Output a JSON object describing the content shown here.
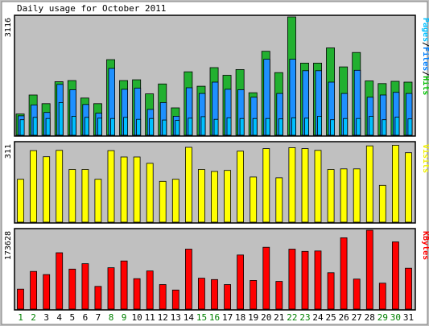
{
  "chart_data": {
    "type": "bar",
    "title": "Daily usage for October 2011",
    "categories": [
      "1",
      "2",
      "3",
      "4",
      "5",
      "6",
      "7",
      "8",
      "9",
      "10",
      "11",
      "12",
      "13",
      "14",
      "15",
      "16",
      "17",
      "18",
      "19",
      "20",
      "21",
      "22",
      "23",
      "24",
      "25",
      "26",
      "27",
      "28",
      "29",
      "30",
      "31"
    ],
    "weekend_days": [
      "1",
      "2",
      "8",
      "9",
      "15",
      "16",
      "22",
      "23",
      "29",
      "30"
    ],
    "panels": [
      {
        "name": "hits-files-pages",
        "scale_label": "3116",
        "ymax": 3116,
        "side_label_parts": [
          {
            "text": "Pages",
            "color": "#00c0ff"
          },
          {
            "text": "/",
            "color": "#000000"
          },
          {
            "text": "Files",
            "color": "#0080ff"
          },
          {
            "text": "/",
            "color": "#000000"
          },
          {
            "text": "Hits",
            "color": "#00c000"
          }
        ],
        "series": [
          {
            "name": "Hits",
            "color": "#22b030",
            "values": [
              560,
              1060,
              830,
              1410,
              1440,
              980,
              830,
              1990,
              1440,
              1460,
              1090,
              1350,
              720,
              1670,
              1290,
              1780,
              1580,
              1730,
              1120,
              2210,
              1650,
              3116,
              1900,
              1900,
              2300,
              1800,
              2180,
              1430,
              1360,
              1420,
              1400
            ]
          },
          {
            "name": "Files",
            "color": "#1e90ff",
            "values": [
              510,
              800,
              600,
              1340,
              1200,
              810,
              580,
              1760,
              1210,
              1240,
              680,
              860,
              500,
              1250,
              1100,
              1400,
              1210,
              1200,
              1000,
              2000,
              1100,
              2000,
              1700,
              1700,
              1400,
              1100,
              1710,
              1000,
              1060,
              1130,
              1100
            ]
          },
          {
            "name": "Pages",
            "color": "#00bfff",
            "values": [
              410,
              470,
              440,
              860,
              500,
              470,
              450,
              440,
              470,
              420,
              440,
              400,
              390,
              450,
              490,
              420,
              460,
              440,
              440,
              440,
              430,
              460,
              450,
              500,
              410,
              440,
              440,
              500,
              410,
              480,
              430
            ]
          }
        ]
      },
      {
        "name": "visits",
        "scale_label": "311",
        "ymax": 311,
        "side_label_parts": [
          {
            "text": "Visits",
            "color": "#f0f000"
          }
        ],
        "series": [
          {
            "name": "Visits",
            "color": "#ffff00",
            "values": [
              169,
              282,
              258,
              283,
              208,
              208,
              169,
              282,
              257,
              257,
              232,
              161,
              169,
              295,
              208,
              200,
              204,
              280,
              178,
              290,
              175,
              294,
              290,
              283,
              208,
              210,
              210,
              301,
              145,
              303,
              274
            ]
          }
        ]
      },
      {
        "name": "kbytes",
        "scale_label": "173628",
        "ymax": 173628,
        "side_label_parts": [
          {
            "text": "KBytes",
            "color": "#ff0000"
          }
        ],
        "series": [
          {
            "name": "KBytes",
            "color": "#ff0000",
            "values": [
              44000,
              83000,
              76000,
              124000,
              88000,
              100000,
              50000,
              91000,
              106000,
              67000,
              84000,
              54000,
              42000,
              132000,
              68000,
              65000,
              54000,
              119000,
              63000,
              136000,
              61000,
              132000,
              127000,
              128000,
              80000,
              157000,
              66000,
              173628,
              57000,
              148000,
              90000
            ]
          }
        ]
      }
    ],
    "weekday_label_color": "#00a000",
    "weekend_label_color": "#008000"
  }
}
